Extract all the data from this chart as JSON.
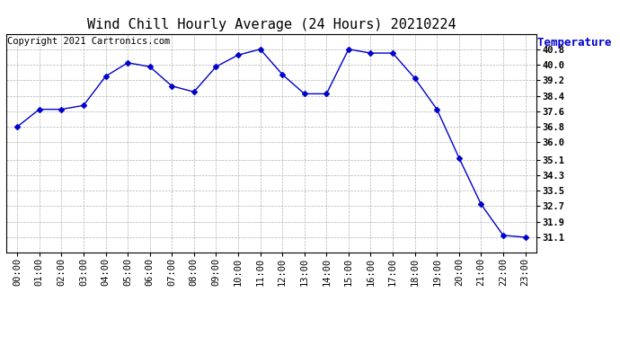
{
  "title": "Wind Chill Hourly Average (24 Hours) 20210224",
  "ylabel": "Temperature (°F)",
  "copyright": "Copyright 2021 Cartronics.com",
  "hours": [
    "00:00",
    "01:00",
    "02:00",
    "03:00",
    "04:00",
    "05:00",
    "06:00",
    "07:00",
    "08:00",
    "09:00",
    "10:00",
    "11:00",
    "12:00",
    "13:00",
    "14:00",
    "15:00",
    "16:00",
    "17:00",
    "18:00",
    "19:00",
    "20:00",
    "21:00",
    "22:00",
    "23:00"
  ],
  "values": [
    36.8,
    37.7,
    37.7,
    37.9,
    39.4,
    40.1,
    39.9,
    38.9,
    38.6,
    39.9,
    40.5,
    40.8,
    39.5,
    38.5,
    38.5,
    40.8,
    40.6,
    40.6,
    39.3,
    37.7,
    35.2,
    32.8,
    31.2,
    31.1
  ],
  "line_color": "#0000cc",
  "marker": "D",
  "marker_size": 3,
  "background_color": "#ffffff",
  "grid_color": "#aaaaaa",
  "ylim_min": 30.3,
  "ylim_max": 41.6,
  "yticks": [
    40.8,
    40.0,
    39.2,
    38.4,
    37.6,
    36.8,
    36.0,
    35.1,
    34.3,
    33.5,
    32.7,
    31.9,
    31.1
  ],
  "title_fontsize": 11,
  "ylabel_fontsize": 9,
  "copyright_fontsize": 7.5,
  "tick_fontsize": 7.5
}
